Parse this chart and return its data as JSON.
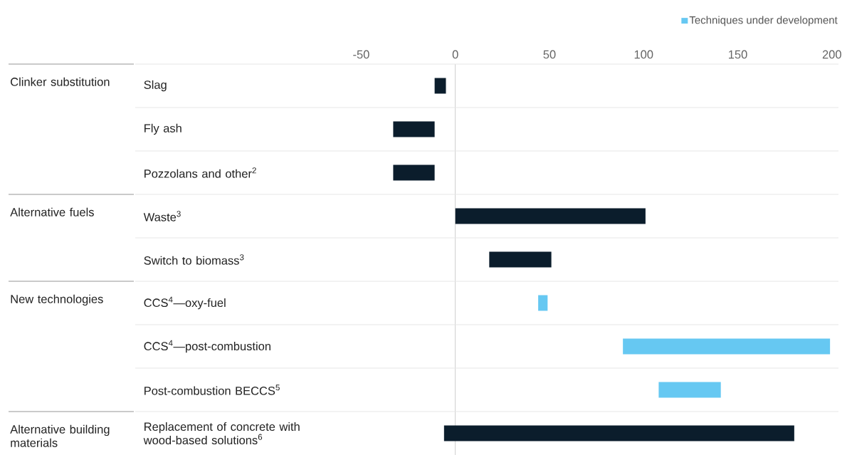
{
  "chart_data": {
    "type": "bar",
    "orientation": "horizontal",
    "categories": [
      "Slag",
      "Fly ash",
      "Pozzolans and other$^{2}$",
      "Waste$^{3}$",
      "Switch to biomass$^{3}$",
      "CCS$^{4}$—oxy-fuel",
      "CCS$^{4}$—post-combustion",
      "Post-combustion BECCS$^{5}$",
      "Replacement of concrete with wood-based solutions$^{6}$"
    ],
    "series": [
      {
        "color": "#0b1d2c",
        "base": [
          -11,
          -33,
          -33,
          0,
          18,
          null,
          null,
          null,
          -6
        ],
        "values": [
          6,
          22,
          22,
          101,
          33,
          null,
          null,
          null,
          186
        ]
      },
      {
        "name": "Techniques under development",
        "color": "#66c8f2",
        "base": [
          null,
          null,
          null,
          null,
          null,
          44,
          89,
          108,
          null
        ],
        "values": [
          null,
          null,
          null,
          null,
          null,
          5,
          110,
          33,
          null
        ]
      }
    ],
    "xlim": [
      -170,
      205
    ],
    "xticks": [
      -50,
      0,
      50,
      100,
      150,
      200
    ],
    "ref_lines": [
      {
        "axis": "x",
        "value": 0,
        "color": "#c8c8c8"
      }
    ],
    "legend": "top right",
    "annotations": [
      "Clinker substitution",
      "Alternative fuels",
      "New technologies",
      "Alternative building materials"
    ]
  }
}
